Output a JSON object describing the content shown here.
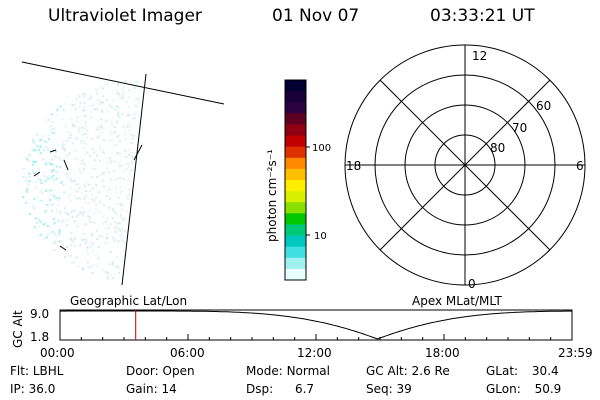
{
  "header": {
    "instrument": "Ultraviolet Imager",
    "date": "01 Nov 07",
    "time": "03:33:21 UT"
  },
  "colorbar": {
    "unit_label": "photon cm⁻²s⁻¹",
    "ticks": [
      "100",
      "10"
    ],
    "colors": [
      "#000033",
      "#1a0038",
      "#2d0040",
      "#600020",
      "#900010",
      "#c00000",
      "#e03000",
      "#ff8800",
      "#ffc000",
      "#ffee00",
      "#d8f000",
      "#88e000",
      "#00c800",
      "#00c878",
      "#00c8c0",
      "#40e0e0",
      "#a0f0f0",
      "#e8ffff"
    ]
  },
  "polar": {
    "lat_labels": [
      "60",
      "70",
      "80"
    ],
    "mlt_labels": {
      "top": "12",
      "left": "18",
      "right": "6",
      "bottom": "0"
    }
  },
  "timeline": {
    "left_label": "Geographic Lat/Lon",
    "right_label": "Apex MLat/MLT",
    "y_axis_label": "GC Alt",
    "y_ticks": [
      "9.0",
      "1.8"
    ],
    "x_ticks": [
      "00:00",
      "06:00",
      "12:00",
      "18:00",
      "23:59"
    ],
    "marker_color": "#cc0000"
  },
  "info": {
    "row1": [
      {
        "key": "Flt:",
        "val": "LBHL"
      },
      {
        "key": "Door:",
        "val": "Open"
      },
      {
        "key": "Mode:",
        "val": "Normal"
      },
      {
        "key": "GC Alt:",
        "val": "2.6 Re"
      },
      {
        "key": "GLat:",
        "val": "30.4"
      }
    ],
    "row2": [
      {
        "key": "IP:",
        "val": "36.0"
      },
      {
        "key": "Gain:",
        "val": "14"
      },
      {
        "key": "Dsp:",
        "val": "6.7"
      },
      {
        "key": "Seq:",
        "val": "39"
      },
      {
        "key": "GLon:",
        "val": "50.9"
      }
    ]
  }
}
